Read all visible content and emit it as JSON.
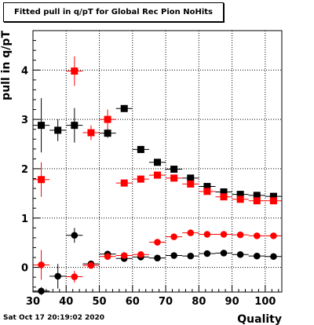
{
  "chart_data": {
    "type": "scatter",
    "title": "Fitted pull in q/pT for Global Rec Pion NoHits",
    "xlabel": "Quality",
    "ylabel": "pull in q/pT",
    "xlim": [
      30,
      105
    ],
    "ylim": [
      -0.5,
      4.8
    ],
    "x_ticks": [
      30,
      40,
      50,
      60,
      70,
      80,
      90,
      100
    ],
    "y_ticks": [
      0,
      1,
      2,
      3,
      4
    ],
    "grid": true,
    "x_half_width": 2.5,
    "series": [
      {
        "color": "#000000",
        "marker": "square",
        "x": [
          32.5,
          37.5,
          42.5,
          52.5,
          57.5,
          62.5,
          67.5,
          72.5,
          77.5,
          82.5,
          87.5,
          92.5,
          97.5,
          102.5
        ],
        "y": [
          2.88,
          2.78,
          2.88,
          2.72,
          3.22,
          2.39,
          2.13,
          1.99,
          1.81,
          1.64,
          1.53,
          1.48,
          1.46,
          1.44
        ],
        "err": [
          0.55,
          0.22,
          0.35,
          0.09,
          0.06,
          0.03,
          0.03,
          0.03,
          0.03,
          0.02,
          0.02,
          0.02,
          0.02,
          0.02
        ]
      },
      {
        "color": "#ff0000",
        "marker": "square",
        "x": [
          32.5,
          42.5,
          47.5,
          52.5,
          57.5,
          62.5,
          67.5,
          72.5,
          77.5,
          82.5,
          87.5,
          92.5,
          97.5,
          102.5
        ],
        "y": [
          1.78,
          3.98,
          2.73,
          3.0,
          1.71,
          1.79,
          1.87,
          1.81,
          1.69,
          1.54,
          1.43,
          1.38,
          1.35,
          1.35
        ],
        "err": [
          0.35,
          0.3,
          0.15,
          0.2,
          0.05,
          0.03,
          0.03,
          0.03,
          0.03,
          0.02,
          0.02,
          0.02,
          0.02,
          0.02
        ]
      },
      {
        "color": "#000000",
        "marker": "circle",
        "x": [
          32.5,
          37.5,
          42.5,
          47.5,
          52.5,
          57.5,
          62.5,
          67.5,
          72.5,
          77.5,
          82.5,
          87.5,
          92.5,
          97.5,
          102.5
        ],
        "y": [
          -0.48,
          -0.18,
          0.65,
          0.07,
          0.27,
          0.18,
          0.21,
          0.19,
          0.24,
          0.23,
          0.28,
          0.29,
          0.26,
          0.23,
          0.22
        ],
        "err": [
          0.08,
          0.25,
          0.15,
          0.06,
          0.04,
          0.03,
          0.03,
          0.02,
          0.02,
          0.02,
          0.02,
          0.02,
          0.02,
          0.02,
          0.02
        ]
      },
      {
        "color": "#ff0000",
        "marker": "circle",
        "x": [
          32.5,
          42.5,
          47.5,
          52.5,
          57.5,
          62.5,
          67.5,
          72.5,
          77.5,
          82.5,
          87.5,
          92.5,
          97.5,
          102.5
        ],
        "y": [
          0.05,
          -0.19,
          0.04,
          0.22,
          0.24,
          0.26,
          0.51,
          0.62,
          0.7,
          0.67,
          0.67,
          0.66,
          0.64,
          0.64
        ],
        "err": [
          0.3,
          0.12,
          0.05,
          0.04,
          0.03,
          0.03,
          0.03,
          0.03,
          0.02,
          0.02,
          0.02,
          0.02,
          0.02,
          0.02
        ]
      }
    ]
  },
  "footer": {
    "timestamp": "Sat Oct 17 20:19:02 2020"
  }
}
